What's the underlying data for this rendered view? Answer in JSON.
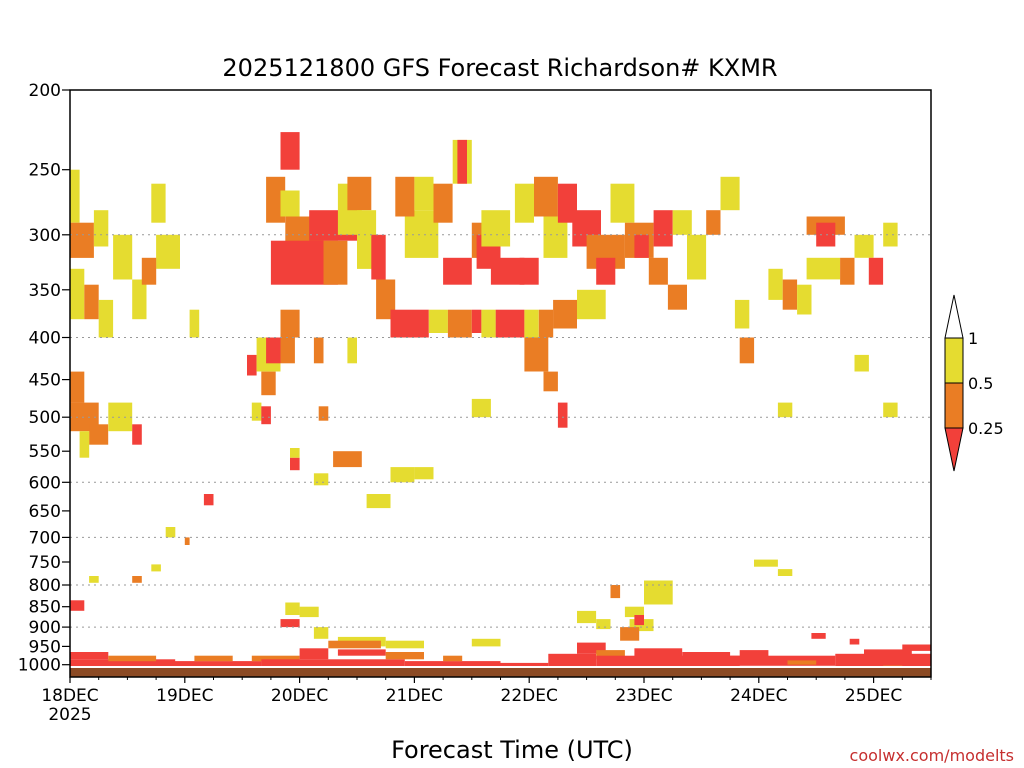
{
  "chart_data": {
    "type": "heatmap",
    "title": "2025121800 GFS Forecast Richardson# KXMR",
    "xlabel": "Forecast Time (UTC)",
    "ylabel": "",
    "y_axis_scale": "log",
    "y_ticks": [
      200,
      250,
      300,
      350,
      400,
      450,
      500,
      550,
      600,
      650,
      700,
      750,
      800,
      850,
      900,
      950,
      1000
    ],
    "y_ticks_dotted": [
      300,
      400,
      500,
      600,
      700,
      800,
      900
    ],
    "ylim": [
      1035,
      200
    ],
    "xlim": [
      0,
      180
    ],
    "x_ticks": [
      {
        "hour": 0,
        "label": "18DEC",
        "sublabel": "2025"
      },
      {
        "hour": 24,
        "label": "19DEC",
        "sublabel": ""
      },
      {
        "hour": 48,
        "label": "20DEC",
        "sublabel": ""
      },
      {
        "hour": 72,
        "label": "21DEC",
        "sublabel": ""
      },
      {
        "hour": 96,
        "label": "22DEC",
        "sublabel": ""
      },
      {
        "hour": 120,
        "label": "23DEC",
        "sublabel": ""
      },
      {
        "hour": 144,
        "label": "24DEC",
        "sublabel": ""
      },
      {
        "hour": 168,
        "label": "25DEC",
        "sublabel": ""
      }
    ],
    "legend": {
      "placement": "right",
      "bins": [
        {
          "range": "above 1",
          "color": "#ffffff"
        },
        {
          "range": "0.5 - 1",
          "color": "#e5dc30"
        },
        {
          "range": "0.25 - 0.5",
          "color": "#ea7d24"
        },
        {
          "range": "below 0.25",
          "color": "#f2403a"
        }
      ],
      "labels": [
        "1",
        "0.5",
        "0.25"
      ]
    },
    "ground_color": "#8b4a24",
    "cells": [
      {
        "t0": 0,
        "t1": 2,
        "p0": 250,
        "p1": 290,
        "cat": "y"
      },
      {
        "t0": 0,
        "t1": 5,
        "p0": 290,
        "p1": 320,
        "cat": "o"
      },
      {
        "t0": 5,
        "t1": 8,
        "p0": 280,
        "p1": 310,
        "cat": "y"
      },
      {
        "t0": 0,
        "t1": 3,
        "p0": 330,
        "p1": 380,
        "cat": "y"
      },
      {
        "t0": 3,
        "t1": 6,
        "p0": 345,
        "p1": 380,
        "cat": "o"
      },
      {
        "t0": 6,
        "t1": 9,
        "p0": 360,
        "p1": 400,
        "cat": "y"
      },
      {
        "t0": 9,
        "t1": 13,
        "p0": 300,
        "p1": 340,
        "cat": "y"
      },
      {
        "t0": 13,
        "t1": 16,
        "p0": 340,
        "p1": 380,
        "cat": "y"
      },
      {
        "t0": 17,
        "t1": 20,
        "p0": 260,
        "p1": 290,
        "cat": "y"
      },
      {
        "t0": 18,
        "t1": 23,
        "p0": 300,
        "p1": 330,
        "cat": "y"
      },
      {
        "t0": 15,
        "t1": 18,
        "p0": 320,
        "p1": 345,
        "cat": "o"
      },
      {
        "t0": 25,
        "t1": 27,
        "p0": 370,
        "p1": 400,
        "cat": "y"
      },
      {
        "t0": 0,
        "t1": 3,
        "p0": 440,
        "p1": 480,
        "cat": "o"
      },
      {
        "t0": 0,
        "t1": 6,
        "p0": 480,
        "p1": 520,
        "cat": "o"
      },
      {
        "t0": 4,
        "t1": 8,
        "p0": 510,
        "p1": 540,
        "cat": "o"
      },
      {
        "t0": 8,
        "t1": 13,
        "p0": 480,
        "p1": 520,
        "cat": "y"
      },
      {
        "t0": 13,
        "t1": 15,
        "p0": 510,
        "p1": 540,
        "cat": "r"
      },
      {
        "t0": 2,
        "t1": 4,
        "p0": 520,
        "p1": 560,
        "cat": "y"
      },
      {
        "t0": 44,
        "t1": 48,
        "p0": 225,
        "p1": 250,
        "cat": "r"
      },
      {
        "t0": 41,
        "t1": 45,
        "p0": 255,
        "p1": 290,
        "cat": "o"
      },
      {
        "t0": 44,
        "t1": 48,
        "p0": 265,
        "p1": 285,
        "cat": "y"
      },
      {
        "t0": 45,
        "t1": 53,
        "p0": 285,
        "p1": 310,
        "cat": "o"
      },
      {
        "t0": 50,
        "t1": 60,
        "p0": 280,
        "p1": 305,
        "cat": "r"
      },
      {
        "t0": 42,
        "t1": 56,
        "p0": 305,
        "p1": 345,
        "cat": "r"
      },
      {
        "t0": 53,
        "t1": 58,
        "p0": 305,
        "p1": 345,
        "cat": "o"
      },
      {
        "t0": 56,
        "t1": 61,
        "p0": 260,
        "p1": 300,
        "cat": "y"
      },
      {
        "t0": 58,
        "t1": 63,
        "p0": 255,
        "p1": 280,
        "cat": "o"
      },
      {
        "t0": 60,
        "t1": 64,
        "p0": 280,
        "p1": 330,
        "cat": "y"
      },
      {
        "t0": 63,
        "t1": 66,
        "p0": 300,
        "p1": 340,
        "cat": "r"
      },
      {
        "t0": 64,
        "t1": 68,
        "p0": 340,
        "p1": 380,
        "cat": "o"
      },
      {
        "t0": 70,
        "t1": 77,
        "p0": 280,
        "p1": 320,
        "cat": "y"
      },
      {
        "t0": 68,
        "t1": 72,
        "p0": 255,
        "p1": 285,
        "cat": "o"
      },
      {
        "t0": 72,
        "t1": 76,
        "p0": 255,
        "p1": 280,
        "cat": "y"
      },
      {
        "t0": 76,
        "t1": 80,
        "p0": 260,
        "p1": 290,
        "cat": "o"
      },
      {
        "t0": 80,
        "t1": 84,
        "p0": 230,
        "p1": 260,
        "cat": "y"
      },
      {
        "t0": 81,
        "t1": 83,
        "p0": 230,
        "p1": 260,
        "cat": "r"
      },
      {
        "t0": 78,
        "t1": 84,
        "p0": 320,
        "p1": 345,
        "cat": "r"
      },
      {
        "t0": 84,
        "t1": 88,
        "p0": 290,
        "p1": 320,
        "cat": "o"
      },
      {
        "t0": 85,
        "t1": 90,
        "p0": 300,
        "p1": 330,
        "cat": "r"
      },
      {
        "t0": 86,
        "t1": 92,
        "p0": 280,
        "p1": 310,
        "cat": "y"
      },
      {
        "t0": 88,
        "t1": 95,
        "p0": 320,
        "p1": 345,
        "cat": "r"
      },
      {
        "t0": 94,
        "t1": 98,
        "p0": 320,
        "p1": 345,
        "cat": "r"
      },
      {
        "t0": 93,
        "t1": 97,
        "p0": 260,
        "p1": 290,
        "cat": "y"
      },
      {
        "t0": 97,
        "t1": 102,
        "p0": 255,
        "p1": 285,
        "cat": "o"
      },
      {
        "t0": 99,
        "t1": 104,
        "p0": 285,
        "p1": 320,
        "cat": "y"
      },
      {
        "t0": 102,
        "t1": 106,
        "p0": 260,
        "p1": 290,
        "cat": "r"
      },
      {
        "t0": 105,
        "t1": 111,
        "p0": 280,
        "p1": 310,
        "cat": "r"
      },
      {
        "t0": 108,
        "t1": 116,
        "p0": 300,
        "p1": 330,
        "cat": "o"
      },
      {
        "t0": 110,
        "t1": 114,
        "p0": 320,
        "p1": 345,
        "cat": "r"
      },
      {
        "t0": 113,
        "t1": 118,
        "p0": 260,
        "p1": 290,
        "cat": "y"
      },
      {
        "t0": 116,
        "t1": 122,
        "p0": 290,
        "p1": 320,
        "cat": "o"
      },
      {
        "t0": 118,
        "t1": 121,
        "p0": 300,
        "p1": 320,
        "cat": "r"
      },
      {
        "t0": 122,
        "t1": 126,
        "p0": 280,
        "p1": 310,
        "cat": "r"
      },
      {
        "t0": 126,
        "t1": 130,
        "p0": 280,
        "p1": 300,
        "cat": "y"
      },
      {
        "t0": 121,
        "t1": 125,
        "p0": 320,
        "p1": 345,
        "cat": "o"
      },
      {
        "t0": 125,
        "t1": 129,
        "p0": 345,
        "p1": 370,
        "cat": "o"
      },
      {
        "t0": 129,
        "t1": 133,
        "p0": 300,
        "p1": 340,
        "cat": "y"
      },
      {
        "t0": 133,
        "t1": 136,
        "p0": 280,
        "p1": 300,
        "cat": "o"
      },
      {
        "t0": 136,
        "t1": 140,
        "p0": 255,
        "p1": 280,
        "cat": "y"
      },
      {
        "t0": 44,
        "t1": 48,
        "p0": 370,
        "p1": 400,
        "cat": "o"
      },
      {
        "t0": 37,
        "t1": 39,
        "p0": 420,
        "p1": 445,
        "cat": "r"
      },
      {
        "t0": 39,
        "t1": 44,
        "p0": 400,
        "p1": 440,
        "cat": "y"
      },
      {
        "t0": 41,
        "t1": 44,
        "p0": 400,
        "p1": 430,
        "cat": "r"
      },
      {
        "t0": 44,
        "t1": 47,
        "p0": 400,
        "p1": 430,
        "cat": "o"
      },
      {
        "t0": 40,
        "t1": 43,
        "p0": 440,
        "p1": 470,
        "cat": "o"
      },
      {
        "t0": 38,
        "t1": 40,
        "p0": 480,
        "p1": 505,
        "cat": "y"
      },
      {
        "t0": 40,
        "t1": 42,
        "p0": 485,
        "p1": 510,
        "cat": "r"
      },
      {
        "t0": 51,
        "t1": 53,
        "p0": 400,
        "p1": 430,
        "cat": "o"
      },
      {
        "t0": 52,
        "t1": 54,
        "p0": 485,
        "p1": 505,
        "cat": "o"
      },
      {
        "t0": 58,
        "t1": 60,
        "p0": 400,
        "p1": 430,
        "cat": "y"
      },
      {
        "t0": 67,
        "t1": 75,
        "p0": 370,
        "p1": 400,
        "cat": "r"
      },
      {
        "t0": 75,
        "t1": 79,
        "p0": 370,
        "p1": 395,
        "cat": "y"
      },
      {
        "t0": 79,
        "t1": 84,
        "p0": 370,
        "p1": 400,
        "cat": "o"
      },
      {
        "t0": 84,
        "t1": 86,
        "p0": 370,
        "p1": 395,
        "cat": "r"
      },
      {
        "t0": 86,
        "t1": 89,
        "p0": 370,
        "p1": 400,
        "cat": "y"
      },
      {
        "t0": 89,
        "t1": 95,
        "p0": 370,
        "p1": 400,
        "cat": "r"
      },
      {
        "t0": 95,
        "t1": 98,
        "p0": 370,
        "p1": 400,
        "cat": "y"
      },
      {
        "t0": 98,
        "t1": 101,
        "p0": 370,
        "p1": 400,
        "cat": "o"
      },
      {
        "t0": 95,
        "t1": 100,
        "p0": 400,
        "p1": 440,
        "cat": "o"
      },
      {
        "t0": 101,
        "t1": 106,
        "p0": 360,
        "p1": 390,
        "cat": "o"
      },
      {
        "t0": 106,
        "t1": 112,
        "p0": 350,
        "p1": 380,
        "cat": "y"
      },
      {
        "t0": 99,
        "t1": 102,
        "p0": 440,
        "p1": 465,
        "cat": "o"
      },
      {
        "t0": 102,
        "t1": 104,
        "p0": 480,
        "p1": 515,
        "cat": "r"
      },
      {
        "t0": 84,
        "t1": 88,
        "p0": 475,
        "p1": 500,
        "cat": "y"
      },
      {
        "t0": 139,
        "t1": 142,
        "p0": 360,
        "p1": 390,
        "cat": "y"
      },
      {
        "t0": 140,
        "t1": 143,
        "p0": 400,
        "p1": 430,
        "cat": "o"
      },
      {
        "t0": 146,
        "t1": 149,
        "p0": 330,
        "p1": 360,
        "cat": "y"
      },
      {
        "t0": 149,
        "t1": 152,
        "p0": 340,
        "p1": 370,
        "cat": "o"
      },
      {
        "t0": 152,
        "t1": 155,
        "p0": 345,
        "p1": 375,
        "cat": "y"
      },
      {
        "t0": 154,
        "t1": 162,
        "p0": 285,
        "p1": 300,
        "cat": "o"
      },
      {
        "t0": 156,
        "t1": 160,
        "p0": 290,
        "p1": 310,
        "cat": "r"
      },
      {
        "t0": 154,
        "t1": 161,
        "p0": 320,
        "p1": 340,
        "cat": "y"
      },
      {
        "t0": 161,
        "t1": 164,
        "p0": 320,
        "p1": 345,
        "cat": "o"
      },
      {
        "t0": 164,
        "t1": 168,
        "p0": 300,
        "p1": 320,
        "cat": "y"
      },
      {
        "t0": 167,
        "t1": 170,
        "p0": 320,
        "p1": 345,
        "cat": "r"
      },
      {
        "t0": 170,
        "t1": 173,
        "p0": 290,
        "p1": 310,
        "cat": "y"
      },
      {
        "t0": 164,
        "t1": 167,
        "p0": 420,
        "p1": 440,
        "cat": "y"
      },
      {
        "t0": 148,
        "t1": 151,
        "p0": 480,
        "p1": 500,
        "cat": "y"
      },
      {
        "t0": 170,
        "t1": 173,
        "p0": 480,
        "p1": 500,
        "cat": "y"
      },
      {
        "t0": 46,
        "t1": 48,
        "p0": 560,
        "p1": 580,
        "cat": "r"
      },
      {
        "t0": 46,
        "t1": 48,
        "p0": 545,
        "p1": 560,
        "cat": "y"
      },
      {
        "t0": 55,
        "t1": 61,
        "p0": 550,
        "p1": 575,
        "cat": "o"
      },
      {
        "t0": 51,
        "t1": 54,
        "p0": 585,
        "p1": 605,
        "cat": "y"
      },
      {
        "t0": 62,
        "t1": 67,
        "p0": 620,
        "p1": 645,
        "cat": "y"
      },
      {
        "t0": 67,
        "t1": 72,
        "p0": 575,
        "p1": 600,
        "cat": "y"
      },
      {
        "t0": 72,
        "t1": 76,
        "p0": 575,
        "p1": 595,
        "cat": "y"
      },
      {
        "t0": 28,
        "t1": 30,
        "p0": 620,
        "p1": 640,
        "cat": "r"
      },
      {
        "t0": 20,
        "t1": 22,
        "p0": 680,
        "p1": 700,
        "cat": "y"
      },
      {
        "t0": 24,
        "t1": 25,
        "p0": 700,
        "p1": 715,
        "cat": "o"
      },
      {
        "t0": 17,
        "t1": 19,
        "p0": 755,
        "p1": 770,
        "cat": "y"
      },
      {
        "t0": 13,
        "t1": 15,
        "p0": 780,
        "p1": 795,
        "cat": "o"
      },
      {
        "t0": 4,
        "t1": 6,
        "p0": 780,
        "p1": 795,
        "cat": "y"
      },
      {
        "t0": 0,
        "t1": 3,
        "p0": 835,
        "p1": 860,
        "cat": "r"
      },
      {
        "t0": 45,
        "t1": 48,
        "p0": 840,
        "p1": 870,
        "cat": "y"
      },
      {
        "t0": 48,
        "t1": 52,
        "p0": 850,
        "p1": 875,
        "cat": "y"
      },
      {
        "t0": 44,
        "t1": 48,
        "p0": 880,
        "p1": 900,
        "cat": "r"
      },
      {
        "t0": 51,
        "t1": 54,
        "p0": 900,
        "p1": 930,
        "cat": "y"
      },
      {
        "t0": 56,
        "t1": 66,
        "p0": 925,
        "p1": 950,
        "cat": "y"
      },
      {
        "t0": 54,
        "t1": 65,
        "p0": 935,
        "p1": 955,
        "cat": "o"
      },
      {
        "t0": 66,
        "t1": 74,
        "p0": 935,
        "p1": 955,
        "cat": "y"
      },
      {
        "t0": 84,
        "t1": 90,
        "p0": 930,
        "p1": 950,
        "cat": "y"
      },
      {
        "t0": 117,
        "t1": 122,
        "p0": 880,
        "p1": 910,
        "cat": "y"
      },
      {
        "t0": 120,
        "t1": 126,
        "p0": 790,
        "p1": 845,
        "cat": "y"
      },
      {
        "t0": 116,
        "t1": 120,
        "p0": 850,
        "p1": 875,
        "cat": "y"
      },
      {
        "t0": 115,
        "t1": 119,
        "p0": 900,
        "p1": 935,
        "cat": "o"
      },
      {
        "t0": 118,
        "t1": 120,
        "p0": 870,
        "p1": 895,
        "cat": "r"
      },
      {
        "t0": 110,
        "t1": 113,
        "p0": 880,
        "p1": 905,
        "cat": "y"
      },
      {
        "t0": 106,
        "t1": 110,
        "p0": 860,
        "p1": 890,
        "cat": "y"
      },
      {
        "t0": 113,
        "t1": 115,
        "p0": 800,
        "p1": 830,
        "cat": "o"
      },
      {
        "t0": 143,
        "t1": 148,
        "p0": 745,
        "p1": 760,
        "cat": "y"
      },
      {
        "t0": 148,
        "t1": 151,
        "p0": 765,
        "p1": 780,
        "cat": "y"
      },
      {
        "t0": 155,
        "t1": 158,
        "p0": 915,
        "p1": 930,
        "cat": "r"
      },
      {
        "t0": 163,
        "t1": 165,
        "p0": 930,
        "p1": 945,
        "cat": "r"
      },
      {
        "t0": 0,
        "t1": 22,
        "p0": 985,
        "p1": 1005,
        "cat": "r"
      },
      {
        "t0": 0,
        "t1": 8,
        "p0": 965,
        "p1": 985,
        "cat": "r"
      },
      {
        "t0": 8,
        "t1": 18,
        "p0": 975,
        "p1": 990,
        "cat": "o"
      },
      {
        "t0": 20,
        "t1": 40,
        "p0": 990,
        "p1": 1005,
        "cat": "r"
      },
      {
        "t0": 26,
        "t1": 34,
        "p0": 975,
        "p1": 990,
        "cat": "o"
      },
      {
        "t0": 38,
        "t1": 48,
        "p0": 975,
        "p1": 990,
        "cat": "o"
      },
      {
        "t0": 40,
        "t1": 70,
        "p0": 985,
        "p1": 1005,
        "cat": "r"
      },
      {
        "t0": 48,
        "t1": 54,
        "p0": 955,
        "p1": 985,
        "cat": "r"
      },
      {
        "t0": 56,
        "t1": 66,
        "p0": 958,
        "p1": 975,
        "cat": "r"
      },
      {
        "t0": 66,
        "t1": 74,
        "p0": 965,
        "p1": 985,
        "cat": "o"
      },
      {
        "t0": 70,
        "t1": 90,
        "p0": 990,
        "p1": 1005,
        "cat": "r"
      },
      {
        "t0": 78,
        "t1": 82,
        "p0": 975,
        "p1": 990,
        "cat": "o"
      },
      {
        "t0": 90,
        "t1": 100,
        "p0": 995,
        "p1": 1008,
        "cat": "r"
      },
      {
        "t0": 100,
        "t1": 110,
        "p0": 970,
        "p1": 1005,
        "cat": "r"
      },
      {
        "t0": 106,
        "t1": 112,
        "p0": 940,
        "p1": 970,
        "cat": "r"
      },
      {
        "t0": 110,
        "t1": 116,
        "p0": 960,
        "p1": 985,
        "cat": "o"
      },
      {
        "t0": 110,
        "t1": 140,
        "p0": 975,
        "p1": 1005,
        "cat": "r"
      },
      {
        "t0": 118,
        "t1": 128,
        "p0": 955,
        "p1": 978,
        "cat": "r"
      },
      {
        "t0": 128,
        "t1": 138,
        "p0": 965,
        "p1": 985,
        "cat": "r"
      },
      {
        "t0": 138,
        "t1": 160,
        "p0": 975,
        "p1": 1003,
        "cat": "r"
      },
      {
        "t0": 140,
        "t1": 146,
        "p0": 960,
        "p1": 978,
        "cat": "r"
      },
      {
        "t0": 150,
        "t1": 156,
        "p0": 988,
        "p1": 1000,
        "cat": "o"
      },
      {
        "t0": 160,
        "t1": 180,
        "p0": 970,
        "p1": 1005,
        "cat": "r"
      },
      {
        "t0": 166,
        "t1": 176,
        "p0": 958,
        "p1": 975,
        "cat": "r"
      },
      {
        "t0": 174,
        "t1": 180,
        "p0": 945,
        "p1": 962,
        "cat": "r"
      },
      {
        "t0": 170,
        "t1": 174,
        "p0": 1003,
        "p1": 1012,
        "cat": "y"
      }
    ]
  },
  "credit": "coolwx.com/modelts"
}
